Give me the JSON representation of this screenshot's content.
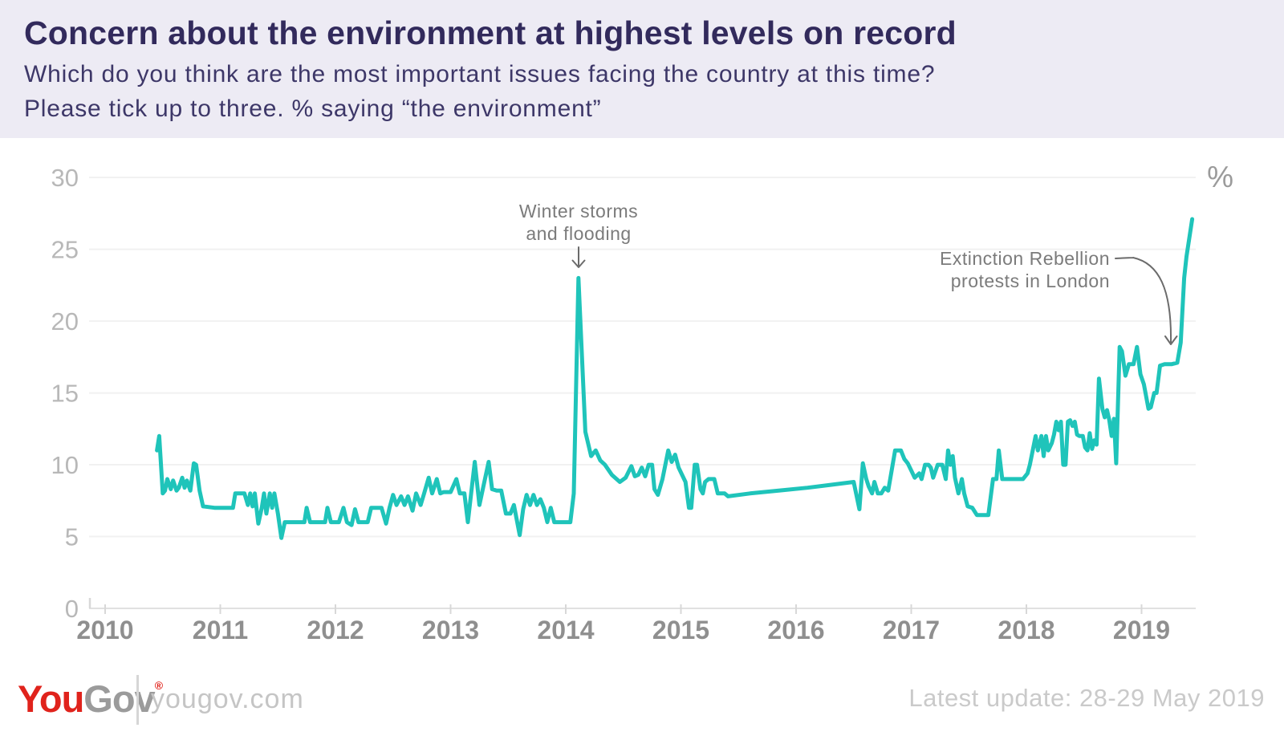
{
  "header": {
    "title": "Concern about the environment at highest levels on record",
    "subtitle_line1": "Which do you think are the most important issues facing the country at this time?",
    "subtitle_line2": "Please tick up to three. % saying “the environment”"
  },
  "annotations": {
    "winter_line1": "Winter storms",
    "winter_line2": "and flooding",
    "extinction_line1": "Extinction Rebellion",
    "extinction_line2": "protests in London"
  },
  "footer": {
    "logo_you": "You",
    "logo_gov": "Gov",
    "logo_reg": "®",
    "site": "yougov.com",
    "latest_update": "Latest update: 28-29 May 2019"
  },
  "chart_data": {
    "type": "line",
    "unit_label": "%",
    "x_ticks": [
      2010,
      2011,
      2012,
      2013,
      2014,
      2015,
      2016,
      2017,
      2018,
      2019
    ],
    "y_ticks": [
      0,
      5,
      10,
      15,
      20,
      25,
      30
    ],
    "ylim": [
      0,
      30
    ],
    "xlim": [
      2009.9,
      2019.6
    ],
    "grid": true,
    "line_color": "#1fc4ba",
    "annotated_points": [
      {
        "label": "Winter storms and flooding",
        "x": 2014.11,
        "value": 23
      },
      {
        "label": "Extinction Rebellion protests in London",
        "x": 2019.31,
        "value": 17
      },
      {
        "label": "Latest update 28-29 May 2019",
        "x": 2019.44,
        "value": 27
      }
    ],
    "points": [
      [
        2010.45,
        11
      ],
      [
        2010.47,
        12
      ],
      [
        2010.5,
        8
      ],
      [
        2010.52,
        8.2
      ],
      [
        2010.54,
        9
      ],
      [
        2010.57,
        8.3
      ],
      [
        2010.59,
        8.9
      ],
      [
        2010.62,
        8.2
      ],
      [
        2010.64,
        8.4
      ],
      [
        2010.67,
        9.1
      ],
      [
        2010.69,
        8.4
      ],
      [
        2010.71,
        8.9
      ],
      [
        2010.74,
        8.2
      ],
      [
        2010.77,
        10.1
      ],
      [
        2010.79,
        10
      ],
      [
        2010.82,
        8.2
      ],
      [
        2010.85,
        7.1
      ],
      [
        2010.95,
        7
      ],
      [
        2011.05,
        7
      ],
      [
        2011.11,
        7
      ],
      [
        2011.13,
        8
      ],
      [
        2011.21,
        8
      ],
      [
        2011.24,
        7.2
      ],
      [
        2011.26,
        8
      ],
      [
        2011.28,
        7.1
      ],
      [
        2011.3,
        8
      ],
      [
        2011.33,
        5.9
      ],
      [
        2011.36,
        7
      ],
      [
        2011.38,
        8
      ],
      [
        2011.4,
        6.6
      ],
      [
        2011.43,
        8
      ],
      [
        2011.45,
        7
      ],
      [
        2011.47,
        8
      ],
      [
        2011.5,
        6.6
      ],
      [
        2011.53,
        4.9
      ],
      [
        2011.56,
        6
      ],
      [
        2011.62,
        6
      ],
      [
        2011.68,
        6
      ],
      [
        2011.73,
        6
      ],
      [
        2011.75,
        7
      ],
      [
        2011.78,
        6
      ],
      [
        2011.85,
        6
      ],
      [
        2011.91,
        6
      ],
      [
        2011.93,
        7
      ],
      [
        2011.96,
        6
      ],
      [
        2012.03,
        6
      ],
      [
        2012.07,
        7
      ],
      [
        2012.1,
        6
      ],
      [
        2012.14,
        5.8
      ],
      [
        2012.17,
        6.9
      ],
      [
        2012.2,
        6
      ],
      [
        2012.24,
        6
      ],
      [
        2012.28,
        6
      ],
      [
        2012.31,
        7
      ],
      [
        2012.36,
        7
      ],
      [
        2012.4,
        7
      ],
      [
        2012.44,
        5.9
      ],
      [
        2012.47,
        7
      ],
      [
        2012.5,
        7.9
      ],
      [
        2012.53,
        7.2
      ],
      [
        2012.57,
        7.8
      ],
      [
        2012.6,
        7.2
      ],
      [
        2012.63,
        7.8
      ],
      [
        2012.67,
        6.8
      ],
      [
        2012.7,
        8
      ],
      [
        2012.74,
        7.2
      ],
      [
        2012.77,
        8
      ],
      [
        2012.81,
        9.1
      ],
      [
        2012.84,
        8
      ],
      [
        2012.88,
        9
      ],
      [
        2012.91,
        8
      ],
      [
        2012.94,
        8.1
      ],
      [
        2013,
        8.1
      ],
      [
        2013.05,
        9
      ],
      [
        2013.08,
        8
      ],
      [
        2013.12,
        8
      ],
      [
        2013.15,
        6
      ],
      [
        2013.21,
        10.2
      ],
      [
        2013.25,
        7.2
      ],
      [
        2013.33,
        10.2
      ],
      [
        2013.36,
        8.3
      ],
      [
        2013.4,
        8.2
      ],
      [
        2013.44,
        8.2
      ],
      [
        2013.48,
        6.6
      ],
      [
        2013.52,
        6.6
      ],
      [
        2013.55,
        7.2
      ],
      [
        2013.6,
        5.1
      ],
      [
        2013.63,
        6.9
      ],
      [
        2013.66,
        7.9
      ],
      [
        2013.69,
        7.2
      ],
      [
        2013.72,
        7.9
      ],
      [
        2013.75,
        7.2
      ],
      [
        2013.78,
        7.6
      ],
      [
        2013.81,
        7
      ],
      [
        2013.84,
        6
      ],
      [
        2013.87,
        7
      ],
      [
        2013.9,
        6
      ],
      [
        2013.95,
        6
      ],
      [
        2014,
        6
      ],
      [
        2014.04,
        6
      ],
      [
        2014.07,
        8
      ],
      [
        2014.11,
        23
      ],
      [
        2014.17,
        12.3
      ],
      [
        2014.22,
        10.6
      ],
      [
        2014.26,
        11
      ],
      [
        2014.3,
        10.3
      ],
      [
        2014.34,
        10
      ],
      [
        2014.4,
        9.3
      ],
      [
        2014.47,
        8.8
      ],
      [
        2014.52,
        9.1
      ],
      [
        2014.57,
        9.9
      ],
      [
        2014.6,
        9.2
      ],
      [
        2014.63,
        9.3
      ],
      [
        2014.66,
        9.8
      ],
      [
        2014.69,
        9.2
      ],
      [
        2014.72,
        10
      ],
      [
        2014.75,
        10
      ],
      [
        2014.77,
        8.3
      ],
      [
        2014.8,
        7.9
      ],
      [
        2014.84,
        9
      ],
      [
        2014.89,
        11
      ],
      [
        2014.92,
        10.2
      ],
      [
        2014.95,
        10.7
      ],
      [
        2014.98,
        9.8
      ],
      [
        2015.01,
        9.3
      ],
      [
        2015.04,
        8.8
      ],
      [
        2015.07,
        7
      ],
      [
        2015.09,
        7
      ],
      [
        2015.12,
        10
      ],
      [
        2015.14,
        10
      ],
      [
        2015.17,
        8.3
      ],
      [
        2015.19,
        8
      ],
      [
        2015.21,
        8.8
      ],
      [
        2015.24,
        9
      ],
      [
        2015.29,
        9
      ],
      [
        2015.32,
        8
      ],
      [
        2015.38,
        8
      ],
      [
        2015.41,
        7.8
      ],
      [
        2015.6,
        8
      ],
      [
        2015.85,
        8.2
      ],
      [
        2016.1,
        8.4
      ],
      [
        2016.3,
        8.6
      ],
      [
        2016.5,
        8.8
      ],
      [
        2016.55,
        6.9
      ],
      [
        2016.58,
        10.1
      ],
      [
        2016.61,
        9
      ],
      [
        2016.63,
        8.5
      ],
      [
        2016.66,
        8
      ],
      [
        2016.68,
        8.8
      ],
      [
        2016.71,
        8
      ],
      [
        2016.74,
        8
      ],
      [
        2016.77,
        8.4
      ],
      [
        2016.8,
        8.2
      ],
      [
        2016.86,
        11
      ],
      [
        2016.91,
        11
      ],
      [
        2016.94,
        10.4
      ],
      [
        2016.97,
        10.1
      ],
      [
        2017,
        9.6
      ],
      [
        2017.03,
        9.1
      ],
      [
        2017.07,
        9.4
      ],
      [
        2017.09,
        9
      ],
      [
        2017.12,
        10
      ],
      [
        2017.15,
        10
      ],
      [
        2017.17,
        9.8
      ],
      [
        2017.19,
        9.1
      ],
      [
        2017.23,
        10
      ],
      [
        2017.27,
        10
      ],
      [
        2017.3,
        9
      ],
      [
        2017.32,
        11
      ],
      [
        2017.34,
        10
      ],
      [
        2017.36,
        10.6
      ],
      [
        2017.38,
        9.1
      ],
      [
        2017.41,
        8
      ],
      [
        2017.44,
        9
      ],
      [
        2017.46,
        8
      ],
      [
        2017.49,
        7.1
      ],
      [
        2017.53,
        7
      ],
      [
        2017.57,
        6.5
      ],
      [
        2017.67,
        6.5
      ],
      [
        2017.71,
        9
      ],
      [
        2017.74,
        9
      ],
      [
        2017.76,
        11
      ],
      [
        2017.79,
        9
      ],
      [
        2017.83,
        9
      ],
      [
        2017.97,
        9
      ],
      [
        2018.01,
        9.4
      ],
      [
        2018.03,
        10
      ],
      [
        2018.08,
        12
      ],
      [
        2018.1,
        11
      ],
      [
        2018.13,
        12
      ],
      [
        2018.15,
        10.6
      ],
      [
        2018.17,
        12
      ],
      [
        2018.19,
        11
      ],
      [
        2018.22,
        11.5
      ],
      [
        2018.24,
        12.1
      ],
      [
        2018.26,
        13
      ],
      [
        2018.28,
        12.4
      ],
      [
        2018.3,
        13
      ],
      [
        2018.32,
        10
      ],
      [
        2018.34,
        10
      ],
      [
        2018.36,
        13
      ],
      [
        2018.38,
        13.1
      ],
      [
        2018.4,
        12.7
      ],
      [
        2018.42,
        13
      ],
      [
        2018.44,
        12.1
      ],
      [
        2018.46,
        12
      ],
      [
        2018.49,
        12
      ],
      [
        2018.51,
        11.2
      ],
      [
        2018.53,
        11
      ],
      [
        2018.55,
        12.2
      ],
      [
        2018.57,
        11.1
      ],
      [
        2018.59,
        11.7
      ],
      [
        2018.61,
        11.4
      ],
      [
        2018.63,
        16
      ],
      [
        2018.66,
        13.9
      ],
      [
        2018.68,
        13.3
      ],
      [
        2018.7,
        13.8
      ],
      [
        2018.72,
        13.1
      ],
      [
        2018.74,
        12
      ],
      [
        2018.76,
        13.2
      ],
      [
        2018.78,
        10.1
      ],
      [
        2018.81,
        18.2
      ],
      [
        2018.83,
        17.9
      ],
      [
        2018.86,
        16.2
      ],
      [
        2018.89,
        17
      ],
      [
        2018.93,
        17
      ],
      [
        2018.96,
        18.2
      ],
      [
        2018.99,
        16.3
      ],
      [
        2019.02,
        15.6
      ],
      [
        2019.06,
        13.9
      ],
      [
        2019.08,
        14
      ],
      [
        2019.11,
        15
      ],
      [
        2019.13,
        15
      ],
      [
        2019.16,
        16.9
      ],
      [
        2019.2,
        17
      ],
      [
        2019.26,
        17
      ],
      [
        2019.31,
        17.1
      ],
      [
        2019.34,
        18.5
      ],
      [
        2019.37,
        23
      ],
      [
        2019.39,
        24.5
      ],
      [
        2019.44,
        27.1
      ]
    ]
  }
}
